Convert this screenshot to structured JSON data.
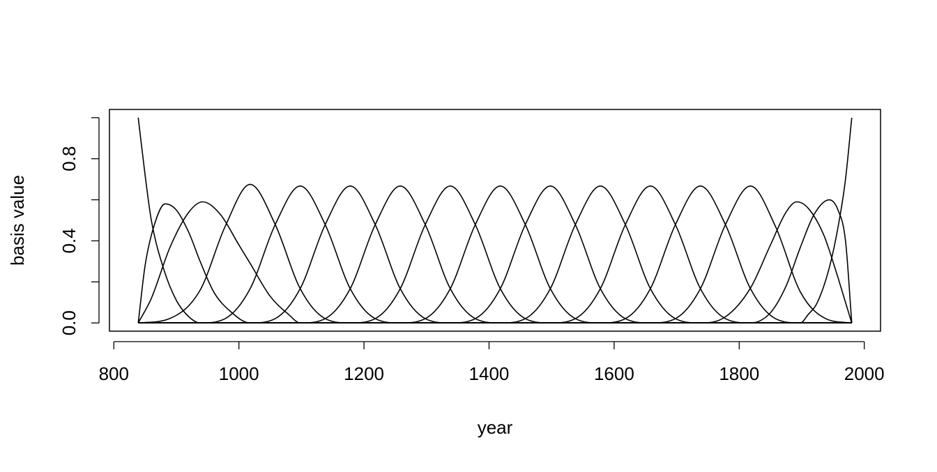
{
  "chart_data": {
    "type": "line",
    "xlabel": "year",
    "ylabel": "basis value",
    "color": "#000000",
    "xlim": [
      793,
      2026
    ],
    "ylim": [
      -0.04,
      1.04
    ],
    "xticks": [
      800,
      1000,
      1200,
      1400,
      1600,
      1800,
      2000
    ],
    "yticks": [
      {
        "value": 0,
        "label": "0.0"
      },
      {
        "value": 0.4,
        "label": "0.4"
      },
      {
        "value": 0.8,
        "label": "0.8"
      }
    ],
    "yticks_unlabeled": [
      0.2,
      0.6,
      1.0
    ],
    "series": [
      {
        "x": [
          839,
          850,
          860,
          880,
          900,
          920,
          938,
          1980
        ],
        "values": [
          1,
          0.72,
          0.5,
          0.26,
          0.11,
          0.03,
          0,
          0
        ]
      },
      {
        "x": [
          839,
          850,
          865,
          882,
          900,
          920,
          938,
          960,
          985,
          1018,
          1980
        ],
        "values": [
          0,
          0.28,
          0.48,
          0.58,
          0.55,
          0.44,
          0.3,
          0.15,
          0.06,
          0,
          0
        ]
      },
      {
        "x": [
          839,
          860,
          890,
          920,
          942,
          970,
          1000,
          1018,
          1050,
          1080,
          1098,
          1980
        ],
        "values": [
          0,
          0.12,
          0.37,
          0.54,
          0.59,
          0.53,
          0.38,
          0.29,
          0.13,
          0.04,
          0,
          0
        ]
      },
      {
        "x": [
          839,
          888,
          938,
          978,
          1018,
          1058,
          1098,
          1138,
          1178,
          1980
        ],
        "values": [
          0,
          0.02,
          0.16,
          0.47,
          0.675,
          0.48,
          0.167,
          0.021,
          0,
          0
        ]
      },
      {
        "x": [
          839,
          938,
          978,
          1018,
          1058,
          1098,
          1138,
          1178,
          1218,
          1258,
          1980
        ],
        "values": [
          0,
          0,
          0.021,
          0.167,
          0.479,
          0.667,
          0.479,
          0.167,
          0.021,
          0,
          0
        ]
      },
      {
        "x": [
          839,
          1018,
          1058,
          1098,
          1138,
          1178,
          1218,
          1258,
          1298,
          1338,
          1980
        ],
        "values": [
          0,
          0,
          0.021,
          0.167,
          0.479,
          0.667,
          0.479,
          0.167,
          0.021,
          0,
          0
        ]
      },
      {
        "x": [
          839,
          1098,
          1138,
          1178,
          1218,
          1258,
          1298,
          1338,
          1378,
          1418,
          1980
        ],
        "values": [
          0,
          0,
          0.021,
          0.167,
          0.479,
          0.667,
          0.479,
          0.167,
          0.021,
          0,
          0
        ]
      },
      {
        "x": [
          839,
          1178,
          1218,
          1258,
          1298,
          1338,
          1378,
          1418,
          1458,
          1498,
          1980
        ],
        "values": [
          0,
          0,
          0.021,
          0.167,
          0.479,
          0.667,
          0.479,
          0.167,
          0.021,
          0,
          0
        ]
      },
      {
        "x": [
          839,
          1258,
          1298,
          1338,
          1378,
          1418,
          1458,
          1498,
          1538,
          1578,
          1980
        ],
        "values": [
          0,
          0,
          0.021,
          0.167,
          0.479,
          0.667,
          0.479,
          0.167,
          0.021,
          0,
          0
        ]
      },
      {
        "x": [
          839,
          1338,
          1378,
          1418,
          1458,
          1498,
          1538,
          1578,
          1618,
          1658,
          1980
        ],
        "values": [
          0,
          0,
          0.021,
          0.167,
          0.479,
          0.667,
          0.479,
          0.167,
          0.021,
          0,
          0
        ]
      },
      {
        "x": [
          839,
          1418,
          1458,
          1498,
          1538,
          1578,
          1618,
          1658,
          1698,
          1738,
          1980
        ],
        "values": [
          0,
          0,
          0.021,
          0.167,
          0.479,
          0.667,
          0.479,
          0.167,
          0.021,
          0,
          0
        ]
      },
      {
        "x": [
          839,
          1498,
          1538,
          1578,
          1618,
          1658,
          1698,
          1738,
          1778,
          1818,
          1980
        ],
        "values": [
          0,
          0,
          0.021,
          0.167,
          0.479,
          0.667,
          0.479,
          0.167,
          0.021,
          0,
          0
        ]
      },
      {
        "x": [
          839,
          1578,
          1618,
          1658,
          1698,
          1738,
          1778,
          1818,
          1858,
          1898,
          1980
        ],
        "values": [
          0,
          0,
          0.021,
          0.167,
          0.479,
          0.667,
          0.479,
          0.167,
          0.021,
          0,
          0
        ]
      },
      {
        "x": [
          839,
          1658,
          1698,
          1738,
          1778,
          1818,
          1858,
          1898,
          1939,
          1980
        ],
        "values": [
          0,
          0,
          0.021,
          0.167,
          0.479,
          0.667,
          0.47,
          0.15,
          0.02,
          0
        ]
      },
      {
        "x": [
          839,
          1738,
          1778,
          1818,
          1850,
          1875,
          1892,
          1910,
          1935,
          1955,
          1970,
          1980
        ],
        "values": [
          0,
          0,
          0.03,
          0.17,
          0.38,
          0.54,
          0.59,
          0.56,
          0.43,
          0.25,
          0.1,
          0
        ]
      },
      {
        "x": [
          839,
          1818,
          1850,
          1875,
          1898,
          1920,
          1944,
          1958,
          1970,
          1980
        ],
        "values": [
          0,
          0,
          0.05,
          0.18,
          0.37,
          0.53,
          0.6,
          0.55,
          0.4,
          0
        ]
      },
      {
        "x": [
          839,
          1898,
          1910,
          1925,
          1945,
          1960,
          1970,
          1980
        ],
        "values": [
          0,
          0,
          0.04,
          0.1,
          0.28,
          0.5,
          0.7,
          1
        ]
      }
    ]
  }
}
